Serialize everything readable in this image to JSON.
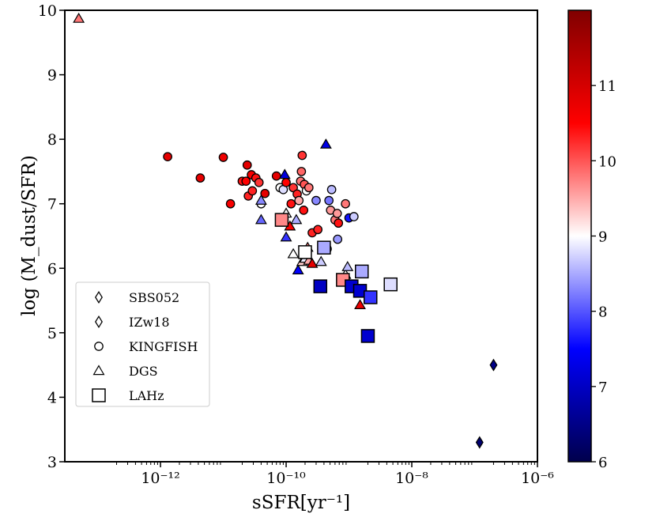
{
  "chart_data": {
    "type": "scatter",
    "xlabel": "sSFR[yr⁻¹]",
    "ylabel": "log (M_dust/SFR)",
    "x_scale": "log",
    "xlim": [
      3e-14,
      1e-06
    ],
    "ylim": [
      3,
      10
    ],
    "x_ticks": [
      {
        "value": 1e-12,
        "label": "10⁻¹²"
      },
      {
        "value": 1e-10,
        "label": "10⁻¹⁰"
      },
      {
        "value": 1e-08,
        "label": "10⁻⁸"
      },
      {
        "value": 1e-06,
        "label": "10⁻⁶"
      }
    ],
    "y_ticks": [
      {
        "value": 3,
        "label": "3"
      },
      {
        "value": 4,
        "label": "4"
      },
      {
        "value": 5,
        "label": "5"
      },
      {
        "value": 6,
        "label": "6"
      },
      {
        "value": 7,
        "label": "7"
      },
      {
        "value": 8,
        "label": "8"
      },
      {
        "value": 9,
        "label": "9"
      },
      {
        "value": 10,
        "label": "10"
      }
    ],
    "colorbar": {
      "colormap": "seismic",
      "range": [
        6,
        12
      ],
      "ticks": [
        {
          "value": 6,
          "label": "6"
        },
        {
          "value": 7,
          "label": "7"
        },
        {
          "value": 8,
          "label": "8"
        },
        {
          "value": 9,
          "label": "9"
        },
        {
          "value": 10,
          "label": "10"
        },
        {
          "value": 11,
          "label": "11"
        }
      ]
    },
    "legend": {
      "position": "lower-left",
      "entries": [
        {
          "label": "SBS052",
          "marker": "diamond"
        },
        {
          "label": "IZw18",
          "marker": "diamond"
        },
        {
          "label": "KINGFISH",
          "marker": "circle"
        },
        {
          "label": "DGS",
          "marker": "triangle"
        },
        {
          "label": "LAHz",
          "marker": "square"
        }
      ]
    },
    "series": [
      {
        "name": "SBS052",
        "marker": "diamond",
        "points": [
          {
            "x": 2e-07,
            "y": 4.5,
            "c": 6.5
          }
        ]
      },
      {
        "name": "IZw18",
        "marker": "diamond",
        "points": [
          {
            "x": 1.2e-07,
            "y": 3.3,
            "c": 6.3
          }
        ]
      },
      {
        "name": "KINGFISH",
        "marker": "circle",
        "points": [
          {
            "x": 1.3e-12,
            "y": 7.73,
            "c": 10.8
          },
          {
            "x": 4.3e-12,
            "y": 7.4,
            "c": 10.8
          },
          {
            "x": 1e-11,
            "y": 7.72,
            "c": 10.7
          },
          {
            "x": 1.3e-11,
            "y": 7.0,
            "c": 10.6
          },
          {
            "x": 2e-11,
            "y": 7.35,
            "c": 10.4
          },
          {
            "x": 2.4e-11,
            "y": 7.6,
            "c": 10.8
          },
          {
            "x": 2.3e-11,
            "y": 7.35,
            "c": 10.5
          },
          {
            "x": 2.5e-11,
            "y": 7.12,
            "c": 10.3
          },
          {
            "x": 2.8e-11,
            "y": 7.45,
            "c": 10.6
          },
          {
            "x": 2.9e-11,
            "y": 7.2,
            "c": 10.3
          },
          {
            "x": 3.3e-11,
            "y": 7.4,
            "c": 10.4
          },
          {
            "x": 3.7e-11,
            "y": 7.33,
            "c": 10.2
          },
          {
            "x": 4e-11,
            "y": 7.0,
            "c": 9.0
          },
          {
            "x": 4.6e-11,
            "y": 7.16,
            "c": 10.8
          },
          {
            "x": 7e-11,
            "y": 7.43,
            "c": 10.8
          },
          {
            "x": 8e-11,
            "y": 7.25,
            "c": 9.0
          },
          {
            "x": 9e-11,
            "y": 7.22,
            "c": 8.8
          },
          {
            "x": 1e-10,
            "y": 7.33,
            "c": 10.5
          },
          {
            "x": 1.2e-10,
            "y": 7.0,
            "c": 10.4
          },
          {
            "x": 1.3e-10,
            "y": 7.25,
            "c": 10.2
          },
          {
            "x": 1.5e-10,
            "y": 7.15,
            "c": 10.3
          },
          {
            "x": 1.6e-10,
            "y": 7.05,
            "c": 9.5
          },
          {
            "x": 1.7e-10,
            "y": 7.35,
            "c": 9.8
          },
          {
            "x": 1.75e-10,
            "y": 7.5,
            "c": 9.9
          },
          {
            "x": 1.8e-10,
            "y": 7.75,
            "c": 10.2
          },
          {
            "x": 1.9e-10,
            "y": 6.9,
            "c": 10.4
          },
          {
            "x": 1.95e-10,
            "y": 7.3,
            "c": 10.0
          },
          {
            "x": 2.1e-10,
            "y": 7.2,
            "c": 9.0
          },
          {
            "x": 2.3e-10,
            "y": 7.25,
            "c": 9.8
          },
          {
            "x": 2.6e-10,
            "y": 6.55,
            "c": 10.3
          },
          {
            "x": 3e-10,
            "y": 7.05,
            "c": 8.3
          },
          {
            "x": 3.2e-10,
            "y": 6.6,
            "c": 10.3
          },
          {
            "x": 4.5e-10,
            "y": 6.3,
            "c": 8.2
          },
          {
            "x": 4.8e-10,
            "y": 7.05,
            "c": 8.2
          },
          {
            "x": 5.1e-10,
            "y": 6.9,
            "c": 9.6
          },
          {
            "x": 5.3e-10,
            "y": 7.22,
            "c": 8.6
          },
          {
            "x": 6e-10,
            "y": 6.75,
            "c": 9.8
          },
          {
            "x": 6.5e-10,
            "y": 6.85,
            "c": 9.6
          },
          {
            "x": 6.6e-10,
            "y": 6.45,
            "c": 8.4
          },
          {
            "x": 6.8e-10,
            "y": 6.7,
            "c": 10.4
          },
          {
            "x": 8.8e-10,
            "y": 7.0,
            "c": 9.8
          },
          {
            "x": 1e-09,
            "y": 6.78,
            "c": 7.6
          },
          {
            "x": 1.2e-09,
            "y": 6.8,
            "c": 8.7
          },
          {
            "x": 3.8e-10,
            "y": 5.75,
            "c": 8.2
          }
        ]
      },
      {
        "name": "DGS",
        "marker": "triangle",
        "points": [
          {
            "x": 5e-14,
            "y": 9.87,
            "c": 9.8
          },
          {
            "x": 4e-11,
            "y": 7.05,
            "c": 8.3
          },
          {
            "x": 4e-11,
            "y": 6.75,
            "c": 8.1
          },
          {
            "x": 9.5e-11,
            "y": 7.45,
            "c": 7.2
          },
          {
            "x": 1e-10,
            "y": 6.85,
            "c": 9.0
          },
          {
            "x": 1e-10,
            "y": 6.48,
            "c": 7.8
          },
          {
            "x": 1.15e-10,
            "y": 6.65,
            "c": 10.6
          },
          {
            "x": 1.3e-10,
            "y": 6.22,
            "c": 9.0
          },
          {
            "x": 1.45e-10,
            "y": 6.75,
            "c": 8.5
          },
          {
            "x": 1.55e-10,
            "y": 5.97,
            "c": 7.5
          },
          {
            "x": 1.8e-10,
            "y": 6.1,
            "c": 9.3
          },
          {
            "x": 2e-10,
            "y": 6.15,
            "c": 8.9
          },
          {
            "x": 2.2e-10,
            "y": 6.32,
            "c": 9.8
          },
          {
            "x": 2.3e-10,
            "y": 6.12,
            "c": 9.5
          },
          {
            "x": 2.6e-10,
            "y": 6.07,
            "c": 10.8
          },
          {
            "x": 3.6e-10,
            "y": 6.1,
            "c": 8.7
          },
          {
            "x": 4.3e-10,
            "y": 7.92,
            "c": 7.3
          },
          {
            "x": 8.8e-10,
            "y": 5.9,
            "c": 9.0
          },
          {
            "x": 9.5e-10,
            "y": 6.02,
            "c": 8.6
          },
          {
            "x": 1.5e-09,
            "y": 5.43,
            "c": 10.7
          }
        ]
      },
      {
        "name": "LAHz",
        "marker": "square",
        "points": [
          {
            "x": 8.5e-11,
            "y": 6.75,
            "c": 9.7
          },
          {
            "x": 2e-10,
            "y": 6.25,
            "c": 9.0
          },
          {
            "x": 4e-10,
            "y": 6.32,
            "c": 8.5
          },
          {
            "x": 3.5e-10,
            "y": 5.72,
            "c": 7.0
          },
          {
            "x": 8e-10,
            "y": 5.82,
            "c": 9.7
          },
          {
            "x": 1.1e-09,
            "y": 5.72,
            "c": 7.1
          },
          {
            "x": 1.6e-09,
            "y": 5.95,
            "c": 8.5
          },
          {
            "x": 1.5e-09,
            "y": 5.65,
            "c": 7.1
          },
          {
            "x": 2.2e-09,
            "y": 5.55,
            "c": 7.8
          },
          {
            "x": 4.6e-09,
            "y": 5.75,
            "c": 8.8
          },
          {
            "x": 2e-09,
            "y": 4.95,
            "c": 7.1
          }
        ]
      }
    ]
  }
}
